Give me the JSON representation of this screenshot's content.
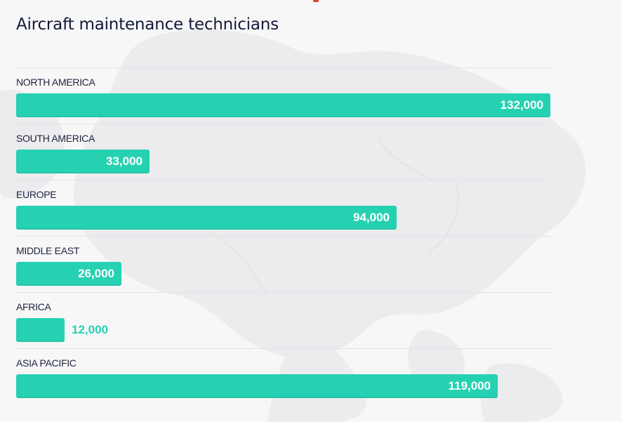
{
  "chart_data": {
    "type": "bar",
    "orientation": "horizontal",
    "title": "Aircraft maintenance technicians",
    "categories": [
      "NORTH AMERICA",
      "SOUTH AMERICA",
      "EUROPE",
      "MIDDLE EAST",
      "AFRICA",
      "ASIA PACIFIC"
    ],
    "values": [
      132000,
      33000,
      94000,
      26000,
      12000,
      119000
    ],
    "value_labels": [
      "132,000",
      "33,000",
      "94,000",
      "26,000",
      "12,000",
      "119,000"
    ],
    "xlim": [
      0,
      132000
    ],
    "grid": false,
    "legend": "none"
  },
  "colors": {
    "bar": "#26d1b2",
    "title": "#131a38",
    "label": "#20253f",
    "value_inside": "#ffffff",
    "value_outside": "#26d1b2",
    "background": "#f7f7f8",
    "accent": "#e0412c"
  }
}
